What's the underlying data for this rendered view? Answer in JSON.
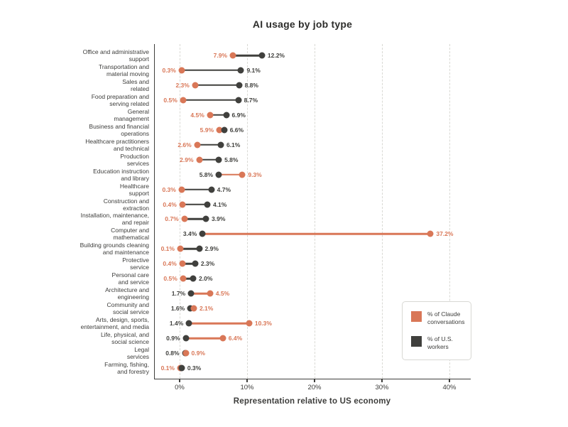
{
  "chart_data": {
    "type": "scatter",
    "variant": "dumbbell",
    "title": "AI usage by job type",
    "xlabel": "Representation relative to US economy",
    "xlim": [
      0,
      40
    ],
    "grid": "vertical-dashed",
    "legend_position": "right-middle",
    "x_ticks": [
      {
        "value": 0,
        "label": "0%"
      },
      {
        "value": 10,
        "label": "10%"
      },
      {
        "value": 20,
        "label": "20%"
      },
      {
        "value": 30,
        "label": "30%"
      },
      {
        "value": 40,
        "label": "40%"
      }
    ],
    "categories": [
      "Office and administrative\nsupport",
      "Transportation and\nmaterial moving",
      "Sales and\nrelated",
      "Food preparation and\nserving related",
      "General\nmanagement",
      "Business and financial\noperations",
      "Healthcare practitioners\nand technical",
      "Production\nservices",
      "Education instruction\nand library",
      "Healthcare\nsupport",
      "Construction and\nextraction",
      "Installation, maintenance,\nand repair",
      "Computer and\nmathematical",
      "Building grounds cleaning\nand maintenance",
      "Protective\nservice",
      "Personal care\nand service",
      "Architecture and\nengineering",
      "Community and\nsocial service",
      "Arts, design, sports,\nentertainment, and media",
      "Life, physical, and\nsocial science",
      "Legal\nservices",
      "Farming, fishing,\nand forestry"
    ],
    "series": [
      {
        "name": "% of Claude conversations",
        "color": "#D97757",
        "values": [
          7.9,
          0.3,
          2.3,
          0.5,
          4.5,
          5.9,
          2.6,
          2.9,
          9.3,
          0.3,
          0.4,
          0.7,
          37.2,
          0.1,
          0.4,
          0.5,
          4.5,
          2.1,
          10.3,
          6.4,
          0.9,
          0.1
        ]
      },
      {
        "name": "% of U.S. workers",
        "color": "#40403D",
        "values": [
          12.2,
          9.1,
          8.8,
          8.7,
          6.9,
          6.6,
          6.1,
          5.8,
          5.8,
          4.7,
          4.1,
          3.9,
          3.4,
          2.9,
          2.3,
          2.0,
          1.7,
          1.6,
          1.4,
          0.9,
          0.8,
          0.3
        ]
      }
    ],
    "value_label_format": "{value}%",
    "legend": {
      "items": [
        {
          "label": "% of Claude\nconversations",
          "color": "#D97757"
        },
        {
          "label": "% of U.S.\nworkers",
          "color": "#40403D"
        }
      ]
    }
  }
}
